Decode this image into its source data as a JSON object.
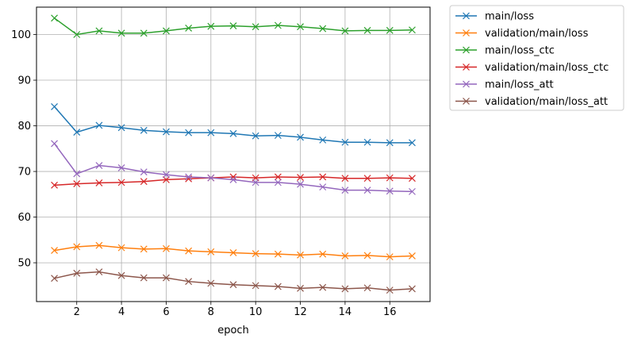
{
  "chart_data": {
    "type": "line",
    "title": "",
    "xlabel": "epoch",
    "ylabel": "",
    "xlim": [
      0.2,
      17.8
    ],
    "ylim": [
      41.5,
      106
    ],
    "xticks": [
      2,
      4,
      6,
      8,
      10,
      12,
      14,
      16
    ],
    "yticks": [
      50,
      60,
      70,
      80,
      90,
      100
    ],
    "grid": true,
    "legend": "outside-right",
    "marker": "x",
    "x": [
      1,
      2,
      3,
      4,
      5,
      6,
      7,
      8,
      9,
      10,
      11,
      12,
      13,
      14,
      15,
      16,
      17
    ],
    "series": [
      {
        "name": "main/loss",
        "color": "#1f77b4",
        "values": [
          84.2,
          78.6,
          80.1,
          79.6,
          79.0,
          78.7,
          78.5,
          78.5,
          78.3,
          77.8,
          77.9,
          77.5,
          76.9,
          76.4,
          76.4,
          76.3,
          76.3
        ]
      },
      {
        "name": "validation/main/loss",
        "color": "#ff7f0e",
        "values": [
          52.7,
          53.5,
          53.8,
          53.3,
          53.0,
          53.1,
          52.6,
          52.4,
          52.2,
          52.0,
          51.9,
          51.7,
          51.9,
          51.5,
          51.6,
          51.3,
          51.5
        ]
      },
      {
        "name": "main/loss_ctc",
        "color": "#2ca02c",
        "values": [
          103.6,
          100.0,
          100.8,
          100.3,
          100.3,
          100.8,
          101.4,
          101.8,
          101.9,
          101.7,
          102.0,
          101.7,
          101.3,
          100.8,
          100.9,
          100.9,
          101.0
        ]
      },
      {
        "name": "validation/main/loss_ctc",
        "color": "#d62728",
        "values": [
          67.0,
          67.3,
          67.5,
          67.6,
          67.8,
          68.2,
          68.4,
          68.6,
          68.8,
          68.6,
          68.8,
          68.7,
          68.8,
          68.5,
          68.5,
          68.6,
          68.5
        ]
      },
      {
        "name": "main/loss_att",
        "color": "#9467bd",
        "values": [
          76.1,
          69.5,
          71.3,
          70.8,
          69.9,
          69.3,
          68.8,
          68.6,
          68.2,
          67.6,
          67.6,
          67.2,
          66.6,
          65.9,
          65.9,
          65.7,
          65.6
        ]
      },
      {
        "name": "validation/main/loss_att",
        "color": "#8c564b",
        "values": [
          46.6,
          47.7,
          48.0,
          47.2,
          46.7,
          46.7,
          45.9,
          45.5,
          45.2,
          45.0,
          44.8,
          44.4,
          44.6,
          44.3,
          44.5,
          44.0,
          44.3
        ]
      }
    ]
  }
}
